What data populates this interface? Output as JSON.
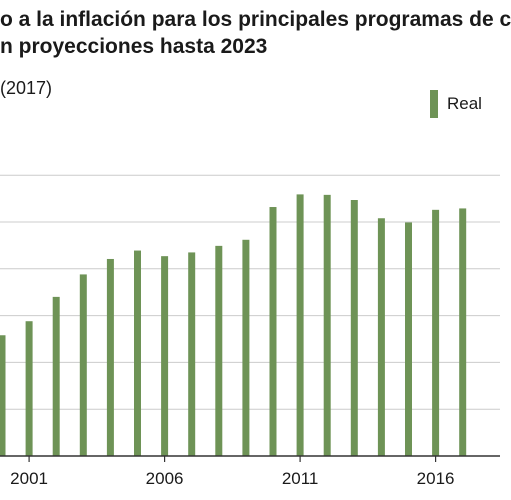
{
  "colors": {
    "bar": "#6e9356",
    "grid": "#cccccc",
    "axis": "#333333"
  },
  "header": {
    "title_line1": "o a la inflación para los principales programas de c",
    "title_line2": "n proyecciones hasta 2023",
    "subtitle": "(2017)"
  },
  "chart_data": {
    "type": "bar",
    "title": "o a la inflación para los principales programas de c n proyecciones hasta 2023",
    "ylabel": "(2017)",
    "x": [
      2000,
      2001,
      2002,
      2003,
      2004,
      2005,
      2006,
      2007,
      2008,
      2009,
      2010,
      2011,
      2012,
      2013,
      2014,
      2015,
      2016,
      2017
    ],
    "x_tick_labels": [
      "2001",
      "2006",
      "2011",
      "2016"
    ],
    "x_tick_values": [
      2001,
      2006,
      2011,
      2016
    ],
    "series": [
      {
        "name": "Real",
        "values": [
          2.58,
          2.88,
          3.4,
          3.88,
          4.21,
          4.39,
          4.27,
          4.35,
          4.49,
          4.62,
          5.32,
          5.59,
          5.58,
          5.47,
          5.08,
          4.99,
          5.26,
          5.29
        ]
      }
    ],
    "ylim": [
      0,
      7
    ],
    "grid": true,
    "legend_position": "top-right"
  }
}
